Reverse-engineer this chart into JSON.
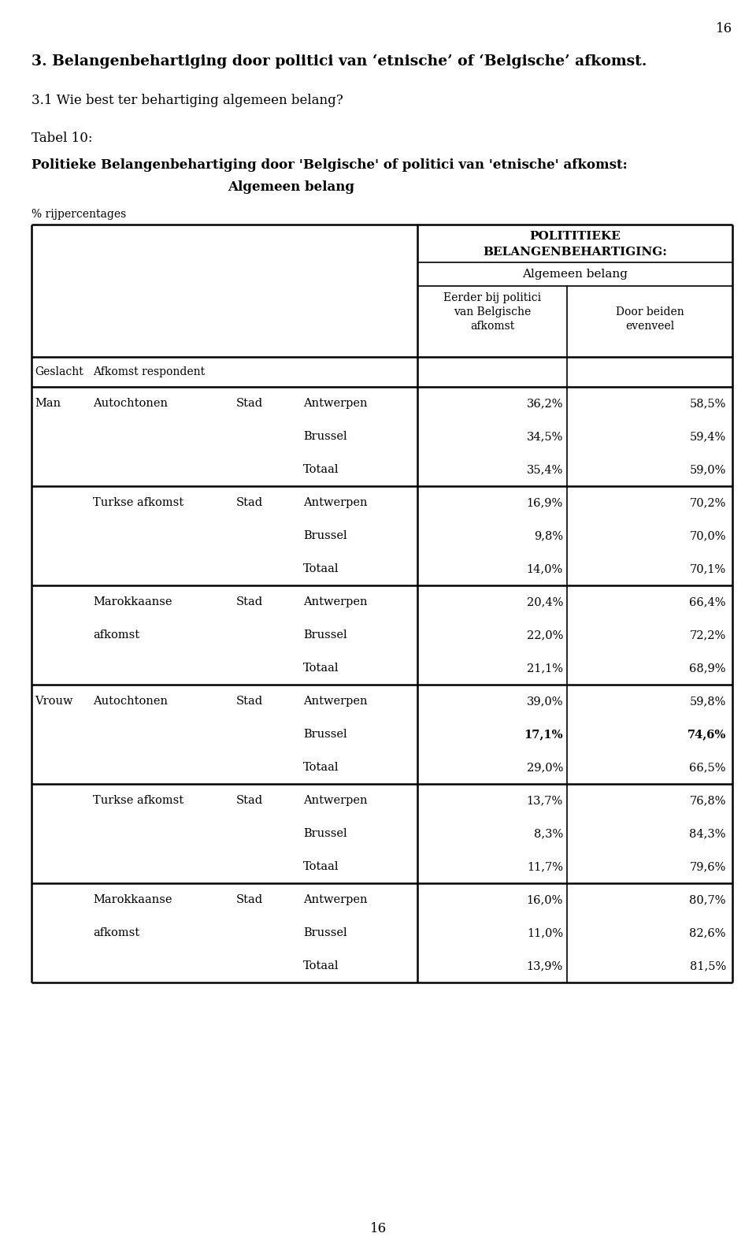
{
  "page_number": "16",
  "section_title": "3. Belangenbehartiging door politici van ‘etnische’ of ‘Belgische’ afkomst.",
  "subsection_title": "3.1 Wie best ter behartiging algemeen belang?",
  "table_label": "Tabel 10:",
  "table_title_line1": "Politieke Belangenbehartiging door 'Belgische' of politici van 'etnische' afkomst:",
  "table_title_line2": "Algemeen belang",
  "row_percent_label": "% rijpercentages",
  "rows": [
    {
      "geslacht": "Man",
      "afkomst": "Autochtonen",
      "stad_label": "Stad",
      "stad": "Antwerpen",
      "val1": "36,2%",
      "val2": "58,5%",
      "bold1": false,
      "bold2": false
    },
    {
      "geslacht": "",
      "afkomst": "",
      "stad_label": "",
      "stad": "Brussel",
      "val1": "34,5%",
      "val2": "59,4%",
      "bold1": false,
      "bold2": false
    },
    {
      "geslacht": "",
      "afkomst": "",
      "stad_label": "",
      "stad": "Totaal",
      "val1": "35,4%",
      "val2": "59,0%",
      "bold1": false,
      "bold2": false
    },
    {
      "geslacht": "",
      "afkomst": "Turkse afkomst",
      "stad_label": "Stad",
      "stad": "Antwerpen",
      "val1": "16,9%",
      "val2": "70,2%",
      "bold1": false,
      "bold2": false
    },
    {
      "geslacht": "",
      "afkomst": "",
      "stad_label": "",
      "stad": "Brussel",
      "val1": "9,8%",
      "val2": "70,0%",
      "bold1": false,
      "bold2": false
    },
    {
      "geslacht": "",
      "afkomst": "",
      "stad_label": "",
      "stad": "Totaal",
      "val1": "14,0%",
      "val2": "70,1%",
      "bold1": false,
      "bold2": false
    },
    {
      "geslacht": "",
      "afkomst": "Marokkaanse",
      "stad_label": "Stad",
      "stad": "Antwerpen",
      "val1": "20,4%",
      "val2": "66,4%",
      "bold1": false,
      "bold2": false
    },
    {
      "geslacht": "",
      "afkomst": "afkomst",
      "stad_label": "",
      "stad": "Brussel",
      "val1": "22,0%",
      "val2": "72,2%",
      "bold1": false,
      "bold2": false
    },
    {
      "geslacht": "",
      "afkomst": "",
      "stad_label": "",
      "stad": "Totaal",
      "val1": "21,1%",
      "val2": "68,9%",
      "bold1": false,
      "bold2": false
    },
    {
      "geslacht": "Vrouw",
      "afkomst": "Autochtonen",
      "stad_label": "Stad",
      "stad": "Antwerpen",
      "val1": "39,0%",
      "val2": "59,8%",
      "bold1": false,
      "bold2": false
    },
    {
      "geslacht": "",
      "afkomst": "",
      "stad_label": "",
      "stad": "Brussel",
      "val1": "17,1%",
      "val2": "74,6%",
      "bold1": true,
      "bold2": true
    },
    {
      "geslacht": "",
      "afkomst": "",
      "stad_label": "",
      "stad": "Totaal",
      "val1": "29,0%",
      "val2": "66,5%",
      "bold1": false,
      "bold2": false
    },
    {
      "geslacht": "",
      "afkomst": "Turkse afkomst",
      "stad_label": "Stad",
      "stad": "Antwerpen",
      "val1": "13,7%",
      "val2": "76,8%",
      "bold1": false,
      "bold2": false
    },
    {
      "geslacht": "",
      "afkomst": "",
      "stad_label": "",
      "stad": "Brussel",
      "val1": "8,3%",
      "val2": "84,3%",
      "bold1": false,
      "bold2": false
    },
    {
      "geslacht": "",
      "afkomst": "",
      "stad_label": "",
      "stad": "Totaal",
      "val1": "11,7%",
      "val2": "79,6%",
      "bold1": false,
      "bold2": false
    },
    {
      "geslacht": "",
      "afkomst": "Marokkaanse",
      "stad_label": "Stad",
      "stad": "Antwerpen",
      "val1": "16,0%",
      "val2": "80,7%",
      "bold1": false,
      "bold2": false
    },
    {
      "geslacht": "",
      "afkomst": "afkomst",
      "stad_label": "",
      "stad": "Brussel",
      "val1": "11,0%",
      "val2": "82,6%",
      "bold1": false,
      "bold2": false
    },
    {
      "geslacht": "",
      "afkomst": "",
      "stad_label": "",
      "stad": "Totaal",
      "val1": "13,9%",
      "val2": "81,5%",
      "bold1": false,
      "bold2": false
    }
  ],
  "group_separators_before": [
    3,
    6,
    9,
    12,
    15
  ],
  "background_color": "#ffffff"
}
